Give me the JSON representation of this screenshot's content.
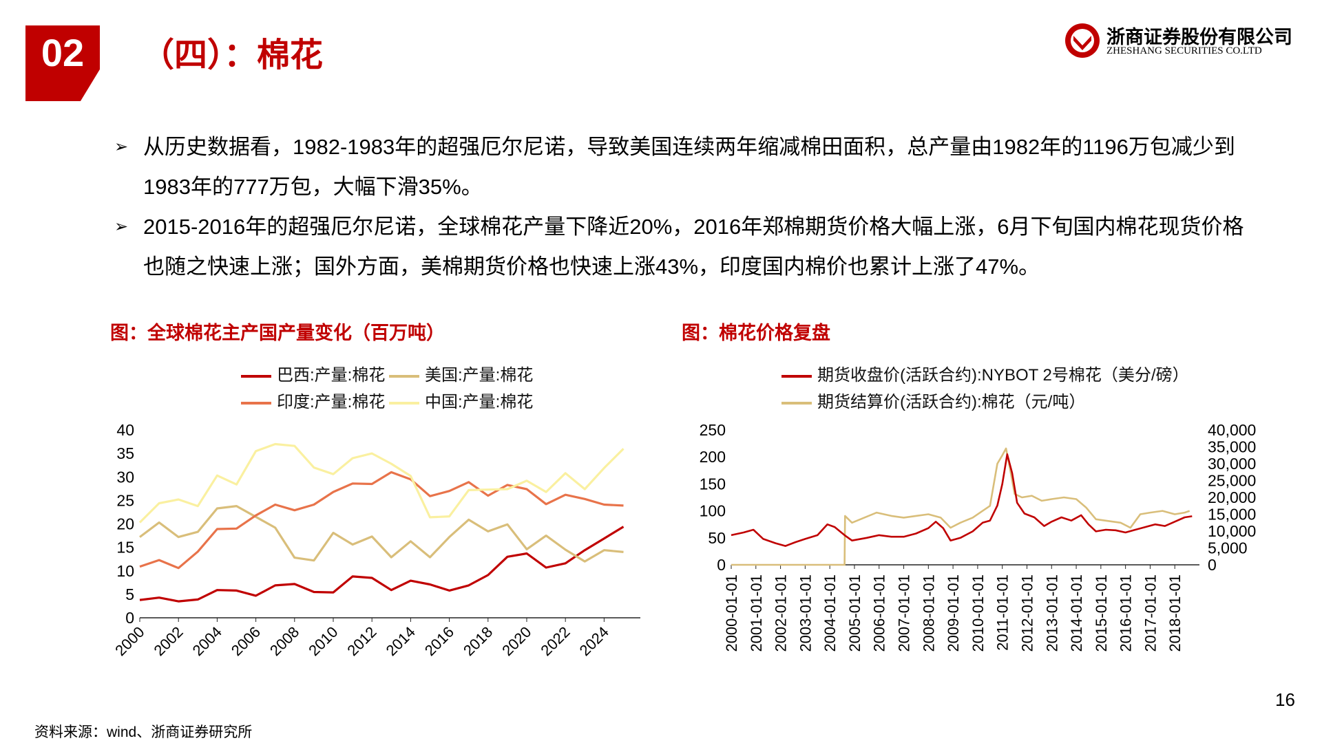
{
  "header": {
    "section_number": "02",
    "title": "（四）：棉花",
    "logo_cn": "浙商证券股份有限公司",
    "logo_en": "ZHESHANG SECURITIES CO.LTD"
  },
  "bullets": [
    "从历史数据看，1982-1983年的超强厄尔尼诺，导致美国连续两年缩减棉田面积，总产量由1982年的1196万包减少到1983年的777万包，大幅下滑35%。",
    "2015-2016年的超强厄尔尼诺，全球棉花产量下降近20%，2016年郑棉期货价格大幅上涨，6月下旬国内棉花现货价格也随之快速上涨；国外方面，美棉期货价格也快速上涨43%，印度国内棉价也累计上涨了47%。"
  ],
  "colors": {
    "accent": "#C00000",
    "brazil": "#C00000",
    "usa": "#D9BE7A",
    "india": "#E8734A",
    "china": "#FAF0A0",
    "nybot": "#C00000",
    "zce": "#D9BE7A"
  },
  "chart_data": [
    {
      "type": "line",
      "title": "图：全球棉花主产国产量变化（百万吨）",
      "x": [
        2000,
        2001,
        2002,
        2003,
        2004,
        2005,
        2006,
        2007,
        2008,
        2009,
        2010,
        2011,
        2012,
        2013,
        2014,
        2015,
        2016,
        2017,
        2018,
        2019,
        2020,
        2021,
        2022,
        2023,
        2024,
        2025
      ],
      "xticks": [
        "2000",
        "2002",
        "2004",
        "2006",
        "2008",
        "2010",
        "2012",
        "2014",
        "2016",
        "2018",
        "2020",
        "2022",
        "2024"
      ],
      "ylim": [
        0,
        40
      ],
      "yticks": [
        "0",
        "5",
        "10",
        "15",
        "20",
        "25",
        "30",
        "35",
        "40"
      ],
      "series": [
        {
          "name": "巴西:产量:棉花",
          "color": "#C00000",
          "values": [
            3.8,
            4.3,
            3.5,
            3.9,
            5.9,
            5.8,
            4.7,
            6.9,
            7.2,
            5.5,
            5.4,
            8.8,
            8.5,
            5.9,
            7.9,
            7.1,
            5.8,
            6.9,
            9.1,
            13.0,
            13.7,
            10.7,
            11.6,
            14.4,
            16.9,
            19.4
          ]
        },
        {
          "name": "美国:产量:棉花",
          "color": "#D9BE7A",
          "values": [
            17.2,
            20.3,
            17.2,
            18.3,
            23.3,
            23.8,
            21.5,
            19.2,
            12.8,
            12.2,
            18.1,
            15.6,
            17.3,
            12.9,
            16.3,
            12.9,
            17.2,
            20.9,
            18.4,
            19.9,
            14.6,
            17.5,
            14.5,
            12.0,
            14.4,
            14.0
          ]
        },
        {
          "name": "印度:产量:棉花",
          "color": "#E8734A",
          "values": [
            10.9,
            12.3,
            10.6,
            14.1,
            18.9,
            19.0,
            21.8,
            24.1,
            22.9,
            24.1,
            26.8,
            28.6,
            28.5,
            31.0,
            29.5,
            25.9,
            27.0,
            28.9,
            26.0,
            28.3,
            27.4,
            24.2,
            26.2,
            25.3,
            24.1,
            23.9
          ]
        },
        {
          "name": "中国:产量:棉花",
          "color": "#FAF0A0",
          "values": [
            20.3,
            24.4,
            25.2,
            23.8,
            30.3,
            28.4,
            35.5,
            37.0,
            36.6,
            32.0,
            30.6,
            34.0,
            35.0,
            32.8,
            30.2,
            21.4,
            21.6,
            27.2,
            27.3,
            27.4,
            29.2,
            26.8,
            30.8,
            27.4,
            31.9,
            36.0
          ]
        }
      ]
    },
    {
      "type": "line",
      "title": "图：棉花价格复盘",
      "x_labels": [
        "2000-01-01",
        "2001-01-01",
        "2002-01-01",
        "2003-01-01",
        "2004-01-01",
        "2005-01-01",
        "2006-01-01",
        "2007-01-01",
        "2008-01-01",
        "2009-01-01",
        "2010-01-01",
        "2011-01-01",
        "2012-01-01",
        "2013-01-01",
        "2014-01-01",
        "2015-01-01",
        "2016-01-01",
        "2017-01-01",
        "2018-01-01"
      ],
      "y_left": {
        "lim": [
          0,
          250
        ],
        "ticks": [
          "0",
          "50",
          "100",
          "150",
          "200",
          "250"
        ]
      },
      "y_right": {
        "lim": [
          0,
          40000
        ],
        "ticks": [
          "0",
          "5,000",
          "10,000",
          "15,000",
          "20,000",
          "25,000",
          "30,000",
          "35,000",
          "40,000"
        ]
      },
      "series": [
        {
          "name": "期货收盘价(活跃合约):NYBOT 2号棉花（美分/磅）",
          "axis": "left",
          "color": "#C00000",
          "points": [
            [
              2000.0,
              55
            ],
            [
              2000.5,
              60
            ],
            [
              2000.9,
              65
            ],
            [
              2001.3,
              48
            ],
            [
              2001.8,
              40
            ],
            [
              2002.2,
              35
            ],
            [
              2002.6,
              42
            ],
            [
              2003.0,
              48
            ],
            [
              2003.5,
              55
            ],
            [
              2003.9,
              75
            ],
            [
              2004.2,
              70
            ],
            [
              2004.6,
              55
            ],
            [
              2004.9,
              45
            ],
            [
              2005.5,
              50
            ],
            [
              2006.0,
              55
            ],
            [
              2006.5,
              52
            ],
            [
              2007.0,
              52
            ],
            [
              2007.5,
              58
            ],
            [
              2008.0,
              68
            ],
            [
              2008.3,
              80
            ],
            [
              2008.6,
              68
            ],
            [
              2008.9,
              45
            ],
            [
              2009.3,
              50
            ],
            [
              2009.8,
              62
            ],
            [
              2010.2,
              78
            ],
            [
              2010.5,
              82
            ],
            [
              2010.8,
              110
            ],
            [
              2011.0,
              150
            ],
            [
              2011.2,
              205
            ],
            [
              2011.4,
              170
            ],
            [
              2011.6,
              115
            ],
            [
              2011.9,
              95
            ],
            [
              2012.3,
              88
            ],
            [
              2012.7,
              72
            ],
            [
              2013.0,
              80
            ],
            [
              2013.4,
              88
            ],
            [
              2013.8,
              82
            ],
            [
              2014.2,
              92
            ],
            [
              2014.5,
              75
            ],
            [
              2014.8,
              62
            ],
            [
              2015.2,
              65
            ],
            [
              2015.6,
              64
            ],
            [
              2016.0,
              60
            ],
            [
              2016.4,
              65
            ],
            [
              2016.8,
              70
            ],
            [
              2017.2,
              75
            ],
            [
              2017.6,
              72
            ],
            [
              2018.0,
              80
            ],
            [
              2018.4,
              88
            ],
            [
              2018.7,
              90
            ]
          ]
        },
        {
          "name": "期货结算价(活跃合约):棉花（元/吨）",
          "axis": "right",
          "color": "#D9BE7A",
          "points": [
            [
              2000.0,
              0
            ],
            [
              2004.6,
              0
            ],
            [
              2004.62,
              14500
            ],
            [
              2004.9,
              12500
            ],
            [
              2005.4,
              14000
            ],
            [
              2005.9,
              15500
            ],
            [
              2006.5,
              14500
            ],
            [
              2007.0,
              14000
            ],
            [
              2007.5,
              14500
            ],
            [
              2008.0,
              15000
            ],
            [
              2008.5,
              14000
            ],
            [
              2008.9,
              11000
            ],
            [
              2009.3,
              12500
            ],
            [
              2009.8,
              14000
            ],
            [
              2010.2,
              16000
            ],
            [
              2010.5,
              17500
            ],
            [
              2010.8,
              30000
            ],
            [
              2011.0,
              32500
            ],
            [
              2011.15,
              34500
            ],
            [
              2011.3,
              29000
            ],
            [
              2011.5,
              21000
            ],
            [
              2011.8,
              20000
            ],
            [
              2012.2,
              20500
            ],
            [
              2012.6,
              19000
            ],
            [
              2013.0,
              19500
            ],
            [
              2013.5,
              20000
            ],
            [
              2014.0,
              19500
            ],
            [
              2014.4,
              17000
            ],
            [
              2014.8,
              13500
            ],
            [
              2015.3,
              13000
            ],
            [
              2015.8,
              12500
            ],
            [
              2016.2,
              11000
            ],
            [
              2016.6,
              15000
            ],
            [
              2017.0,
              15500
            ],
            [
              2017.5,
              16000
            ],
            [
              2018.0,
              15000
            ],
            [
              2018.4,
              15500
            ],
            [
              2018.6,
              16000
            ]
          ]
        }
      ]
    }
  ],
  "footer": {
    "source": "资料来源：wind、浙商证券研究所",
    "page": "16"
  }
}
